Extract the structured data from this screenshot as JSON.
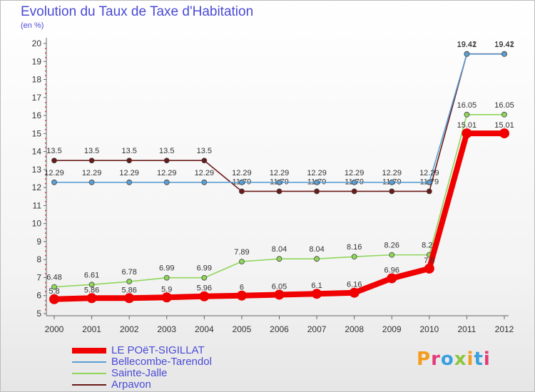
{
  "title": "Evolution du Taux de Taxe d'Habitation",
  "subtitle": "(en %)",
  "logo": {
    "text": "Proxiti",
    "colors": [
      "#f39c1e",
      "#e33b7a",
      "#3aa0dd",
      "#8cc63f",
      "#f39c1e",
      "#3aa0dd",
      "#e33b7a"
    ]
  },
  "chart_data": {
    "type": "line",
    "x": [
      "2000",
      "2001",
      "2002",
      "2003",
      "2004",
      "2005",
      "2006",
      "2007",
      "2008",
      "2009",
      "2010",
      "2011",
      "2012"
    ],
    "yticks": [
      5,
      6,
      7,
      8,
      9,
      10,
      11,
      12,
      13,
      14,
      15,
      16,
      17,
      18,
      19,
      20
    ],
    "ylim": [
      5,
      20
    ],
    "grid": false,
    "legend_position": "bottom-left",
    "series": [
      {
        "name": "Arpavon",
        "color": "#6b1a1a",
        "values": [
          13.5,
          13.5,
          13.5,
          13.5,
          13.5,
          11.79,
          11.79,
          11.79,
          11.79,
          11.79,
          11.79,
          19.42,
          19.42
        ],
        "labels": [
          "13.5",
          "13.5",
          "13.5",
          "13.5",
          "13.5",
          "11.79",
          "11.79",
          "11.79",
          "11.79",
          "11.79",
          "11.79",
          "19.42",
          "19.42"
        ]
      },
      {
        "name": "Bellecombe-Tarendol",
        "color": "#5c9fd4",
        "values": [
          12.29,
          12.29,
          12.29,
          12.29,
          12.29,
          12.29,
          12.29,
          12.29,
          12.29,
          12.29,
          12.29,
          19.41,
          19.41
        ],
        "labels": [
          "12.29",
          "12.29",
          "12.29",
          "12.29",
          "12.29",
          "12.29",
          "12.29",
          "12.29",
          "12.29",
          "12.29",
          "12.29",
          "19.41",
          "19.41"
        ]
      },
      {
        "name": "Sainte-Jalle",
        "color": "#8fd65a",
        "values": [
          6.48,
          6.61,
          6.78,
          6.99,
          6.99,
          7.89,
          8.04,
          8.04,
          8.16,
          8.26,
          8.26,
          16.05,
          16.05
        ],
        "labels": [
          "6.48",
          "6.61",
          "6.78",
          "6.99",
          "6.99",
          "7.89",
          "8.04",
          "8.04",
          "8.16",
          "8.26",
          "8.26",
          "16.05",
          "16.05"
        ]
      },
      {
        "name": "LE POëT-SIGILLAT",
        "color": "#f00000",
        "values": [
          5.8,
          5.86,
          5.86,
          5.9,
          5.96,
          6,
          6.05,
          6.1,
          6.16,
          6.96,
          7.5,
          15.01,
          15.01
        ],
        "labels": [
          "5.8",
          "5.86",
          "5.86",
          "5.9",
          "5.96",
          "6",
          "6.05",
          "6.1",
          "6.16",
          "6.96",
          "7.5",
          "15.01",
          "15.01"
        ]
      }
    ],
    "legend": [
      "LE POëT-SIGILLAT",
      "Bellecombe-Tarendol",
      "Sainte-Jalle",
      "Arpavon"
    ]
  }
}
